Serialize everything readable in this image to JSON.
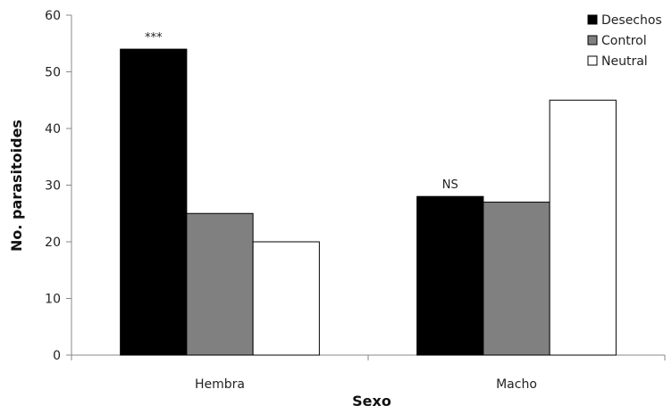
{
  "chart_data": {
    "type": "bar",
    "title": "",
    "xlabel": "Sexo",
    "ylabel": "No. parasitoides",
    "categories": [
      "Hembra",
      "Macho"
    ],
    "series": [
      {
        "name": "Desechos",
        "values": [
          54,
          28
        ],
        "color": "#000000"
      },
      {
        "name": "Control",
        "values": [
          25,
          27
        ],
        "color": "#808080"
      },
      {
        "name": "Neutral",
        "values": [
          20,
          45
        ],
        "color": "#ffffff"
      }
    ],
    "ylim": [
      0,
      60
    ],
    "yticks": [
      0,
      10,
      20,
      30,
      40,
      50,
      60
    ],
    "grid": false,
    "legend_position": "top-right",
    "annotations": [
      {
        "category": "Hembra",
        "series": "Desechos",
        "text": "***"
      },
      {
        "category": "Macho",
        "series": "Desechos",
        "text": "NS"
      }
    ]
  }
}
